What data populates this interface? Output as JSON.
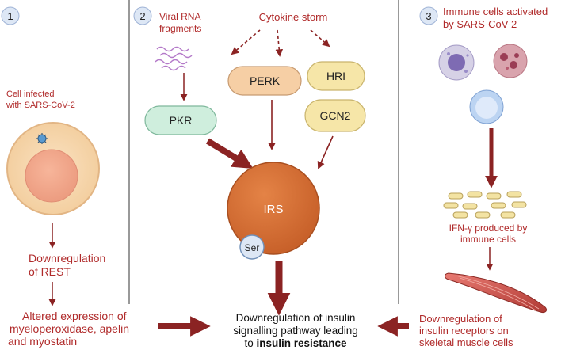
{
  "panel1": {
    "number": "1",
    "infected_line1": "Cell infected",
    "infected_line2": "with SARS-CoV-2",
    "rest_line1": "Downregulation",
    "rest_line2": "of REST",
    "altered_line1": "Altered expression of",
    "altered_line2": "myeloperoxidase, apelin",
    "altered_line3": "and myostatin"
  },
  "panel2": {
    "number": "2",
    "viral_line1": "Viral RNA",
    "viral_line2": "fragments",
    "cytokine": "Cytokine storm",
    "perk": "PERK",
    "hri": "HRI",
    "pkr": "PKR",
    "gcn2": "GCN2",
    "irs": "IRS",
    "ser": "Ser"
  },
  "panel3": {
    "number": "3",
    "immune_line1": "Immune cells activated",
    "immune_line2": "by SARS-CoV-2",
    "ifn_line1": "IFN-γ produced by",
    "ifn_line2": "immune cells",
    "downreg_line1": "Downregulation of",
    "downreg_line2": "insulin receptors on",
    "downreg_line3": "skeletal muscle cells"
  },
  "outcome": {
    "line1": "Downregulation of insulin",
    "line2": "signalling pathway leading",
    "line3_prefix": "to ",
    "line3_bold": "insulin resistance"
  },
  "colors": {
    "dark_red": "#8b2323",
    "red_text": "#b02a2a",
    "irs_orange": "#d9702d",
    "pkr_green": "#cfeedd",
    "perk_orange": "#f6cfa5",
    "hri_yellow": "#f6e6a8",
    "number_circle": "#dde7f5"
  }
}
